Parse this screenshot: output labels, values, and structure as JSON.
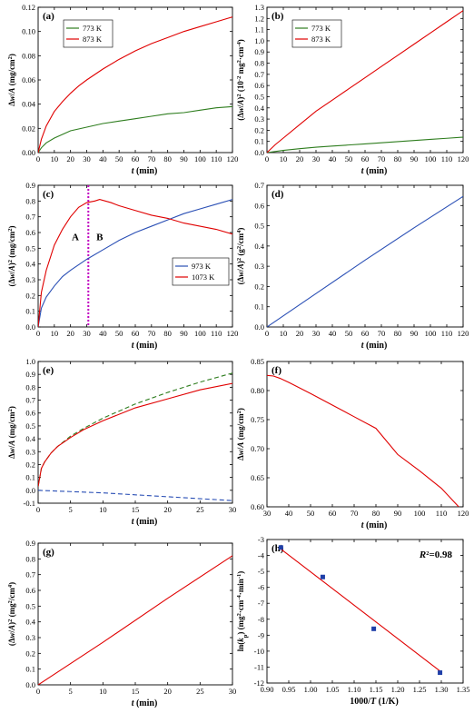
{
  "chart_data": [
    {
      "panel_label": "(a)",
      "type": "line",
      "xlabel_parts": [
        {
          "t": "t",
          "i": true
        },
        {
          "t": " (min)"
        }
      ],
      "ylabel_parts": [
        {
          "t": "Δ"
        },
        {
          "t": "w",
          "i": true
        },
        {
          "t": "/"
        },
        {
          "t": "A",
          "i": true
        },
        {
          "t": " (mg/cm"
        },
        {
          "t": "2",
          "sup": true
        },
        {
          "t": ")"
        }
      ],
      "xlim": [
        0,
        120
      ],
      "ylim": [
        0,
        0.12
      ],
      "xticks": [
        "0",
        "10",
        "20",
        "30",
        "40",
        "50",
        "60",
        "70",
        "80",
        "90",
        "100",
        "110",
        "120"
      ],
      "yticks": [
        "0.00",
        "0.02",
        "0.04",
        "0.06",
        "0.08",
        "0.10",
        "0.12"
      ],
      "legend": {
        "position": "top-left",
        "entries": [
          "773 K",
          "873 K"
        ]
      },
      "series": [
        {
          "name": "773 K",
          "color": "#2e7d1e",
          "dash": "",
          "x": [
            0,
            2,
            5,
            10,
            15,
            20,
            30,
            40,
            50,
            60,
            70,
            80,
            90,
            100,
            110,
            120
          ],
          "y": [
            0,
            0.004,
            0.008,
            0.012,
            0.015,
            0.018,
            0.021,
            0.024,
            0.026,
            0.028,
            0.03,
            0.032,
            0.033,
            0.035,
            0.037,
            0.038
          ]
        },
        {
          "name": "873 K",
          "color": "#e00000",
          "dash": "",
          "x": [
            0,
            2,
            5,
            10,
            15,
            20,
            25,
            30,
            40,
            50,
            60,
            70,
            80,
            90,
            100,
            110,
            120
          ],
          "y": [
            0,
            0.011,
            0.022,
            0.034,
            0.042,
            0.049,
            0.055,
            0.06,
            0.069,
            0.077,
            0.084,
            0.09,
            0.095,
            0.1,
            0.104,
            0.108,
            0.112
          ]
        }
      ]
    },
    {
      "panel_label": "(b)",
      "type": "line",
      "xlabel_parts": [
        {
          "t": "t",
          "i": true
        },
        {
          "t": " (min)"
        }
      ],
      "ylabel_parts": [
        {
          "t": "(Δ"
        },
        {
          "t": "w",
          "i": true
        },
        {
          "t": "/"
        },
        {
          "t": "A",
          "i": true
        },
        {
          "t": ")"
        },
        {
          "t": "2",
          "sup": true
        },
        {
          "t": " (10"
        },
        {
          "t": "-2",
          "sup": true
        },
        {
          "t": " mg"
        },
        {
          "t": "2",
          "sup": true
        },
        {
          "t": "·cm"
        },
        {
          "t": "-4",
          "sup": true
        },
        {
          "t": ")"
        }
      ],
      "xlim": [
        0,
        120
      ],
      "ylim": [
        0,
        1.3
      ],
      "xticks": [
        "0",
        "10",
        "20",
        "30",
        "40",
        "50",
        "60",
        "70",
        "80",
        "90",
        "100",
        "110",
        "120"
      ],
      "yticks": [
        "0.0",
        "0.1",
        "0.2",
        "0.3",
        "0.4",
        "0.5",
        "0.6",
        "0.7",
        "0.8",
        "0.9",
        "1.0",
        "1.1",
        "1.2",
        "1.3"
      ],
      "legend": {
        "position": "top-left",
        "entries": [
          "773 K",
          "873 K"
        ]
      },
      "series": [
        {
          "name": "773 K",
          "color": "#2e7d1e",
          "dash": "",
          "x": [
            0,
            10,
            20,
            30,
            40,
            50,
            60,
            70,
            80,
            90,
            100,
            110,
            120
          ],
          "y": [
            0,
            0.02,
            0.035,
            0.048,
            0.058,
            0.068,
            0.078,
            0.088,
            0.098,
            0.108,
            0.118,
            0.128,
            0.138
          ]
        },
        {
          "name": "873 K",
          "color": "#e00000",
          "dash": "",
          "x": [
            0,
            5,
            10,
            20,
            30,
            40,
            50,
            60,
            70,
            80,
            90,
            100,
            110,
            120
          ],
          "y": [
            0,
            0.07,
            0.13,
            0.25,
            0.37,
            0.47,
            0.57,
            0.67,
            0.77,
            0.87,
            0.97,
            1.07,
            1.17,
            1.27
          ]
        }
      ]
    },
    {
      "panel_label": "(c)",
      "type": "line",
      "xlabel_parts": [
        {
          "t": "t",
          "i": true
        },
        {
          "t": " (min)"
        }
      ],
      "ylabel_parts": [
        {
          "t": "(Δ"
        },
        {
          "t": "w",
          "i": true
        },
        {
          "t": "/"
        },
        {
          "t": "A",
          "i": true
        },
        {
          "t": ")"
        },
        {
          "t": "2",
          "sup": true
        },
        {
          "t": " (mg/cm"
        },
        {
          "t": "2",
          "sup": true
        },
        {
          "t": ")"
        }
      ],
      "xlim": [
        0,
        120
      ],
      "ylim": [
        0,
        0.9
      ],
      "xticks": [
        "0",
        "10",
        "20",
        "30",
        "40",
        "50",
        "60",
        "70",
        "80",
        "90",
        "100",
        "110",
        "120"
      ],
      "yticks": [
        "0.0",
        "0.1",
        "0.2",
        "0.3",
        "0.4",
        "0.5",
        "0.6",
        "0.7",
        "0.8",
        "0.9"
      ],
      "legend": {
        "position": "middle-right",
        "entries": [
          "973 K",
          "1073 K"
        ]
      },
      "vline": {
        "x": 31,
        "color": "#c000c0"
      },
      "annotations": [
        {
          "text": "A",
          "x": 23,
          "y": 0.55
        },
        {
          "text": "B",
          "x": 38,
          "y": 0.55
        }
      ],
      "series": [
        {
          "name": "973 K",
          "color": "#2a4fb5",
          "dash": "",
          "x": [
            0,
            2,
            5,
            10,
            15,
            20,
            30,
            40,
            50,
            60,
            70,
            80,
            90,
            100,
            110,
            120
          ],
          "y": [
            0,
            0.12,
            0.19,
            0.26,
            0.32,
            0.36,
            0.43,
            0.49,
            0.55,
            0.6,
            0.64,
            0.68,
            0.72,
            0.75,
            0.78,
            0.81
          ]
        },
        {
          "name": "1073 K",
          "color": "#e00000",
          "dash": "",
          "x": [
            0,
            2,
            5,
            10,
            15,
            20,
            25,
            30,
            35,
            38,
            45,
            50,
            60,
            70,
            80,
            90,
            100,
            110,
            120
          ],
          "y": [
            0,
            0.22,
            0.36,
            0.52,
            0.62,
            0.7,
            0.76,
            0.79,
            0.8,
            0.81,
            0.79,
            0.77,
            0.74,
            0.71,
            0.69,
            0.66,
            0.64,
            0.62,
            0.59
          ]
        }
      ]
    },
    {
      "panel_label": "(d)",
      "type": "line",
      "xlabel_parts": [
        {
          "t": "t",
          "i": true
        },
        {
          "t": " (min)"
        }
      ],
      "ylabel_parts": [
        {
          "t": "(Δ"
        },
        {
          "t": "w",
          "i": true
        },
        {
          "t": "/"
        },
        {
          "t": "A",
          "i": true
        },
        {
          "t": ")"
        },
        {
          "t": "2",
          "sup": true
        },
        {
          "t": " (g"
        },
        {
          "t": "2",
          "sup": true
        },
        {
          "t": "/cm"
        },
        {
          "t": "4",
          "sup": true
        },
        {
          "t": ")"
        }
      ],
      "xlim": [
        0,
        120
      ],
      "ylim": [
        0,
        0.7
      ],
      "xticks": [
        "0",
        "10",
        "20",
        "30",
        "40",
        "50",
        "60",
        "70",
        "80",
        "90",
        "100",
        "110",
        "120"
      ],
      "yticks": [
        "0.0",
        "0.1",
        "0.2",
        "0.3",
        "0.4",
        "0.5",
        "0.6",
        "0.7"
      ],
      "series": [
        {
          "color": "#2a4fb5",
          "dash": "",
          "x": [
            0,
            30,
            60,
            90,
            120
          ],
          "y": [
            0,
            0.165,
            0.33,
            0.49,
            0.645
          ]
        }
      ]
    },
    {
      "panel_label": "(e)",
      "type": "line",
      "xlabel_parts": [
        {
          "t": "t",
          "i": true
        },
        {
          "t": " (min)"
        }
      ],
      "ylabel_parts": [
        {
          "t": "Δ"
        },
        {
          "t": "w",
          "i": true
        },
        {
          "t": "/"
        },
        {
          "t": "A",
          "i": true
        },
        {
          "t": "  (mg/cm"
        },
        {
          "t": "2",
          "sup": true
        },
        {
          "t": ")"
        }
      ],
      "xlim": [
        0,
        30
      ],
      "ylim": [
        -0.1,
        1.0
      ],
      "xticks": [
        "0",
        "5",
        "10",
        "15",
        "20",
        "25",
        "30"
      ],
      "yticks": [
        "-0.1",
        "0.0",
        "0.1",
        "0.2",
        "0.3",
        "0.4",
        "0.5",
        "0.6",
        "0.7",
        "0.8",
        "0.9",
        "1.0"
      ],
      "series": [
        {
          "color": "#2e7d1e",
          "dash": "5,3",
          "x": [
            0,
            0.5,
            1,
            2,
            3,
            5,
            7,
            10,
            15,
            20,
            25,
            30
          ],
          "y": [
            0.03,
            0.17,
            0.22,
            0.29,
            0.34,
            0.42,
            0.48,
            0.56,
            0.67,
            0.76,
            0.84,
            0.91
          ]
        },
        {
          "color": "#e00000",
          "dash": "",
          "x": [
            0,
            0.5,
            1,
            2,
            3,
            5,
            7,
            10,
            15,
            20,
            25,
            30
          ],
          "y": [
            0.03,
            0.17,
            0.22,
            0.29,
            0.34,
            0.41,
            0.47,
            0.54,
            0.64,
            0.71,
            0.78,
            0.83
          ]
        },
        {
          "color": "#2a4fb5",
          "dash": "5,3",
          "x": [
            0,
            5,
            10,
            15,
            20,
            25,
            30
          ],
          "y": [
            0.0,
            -0.01,
            -0.02,
            -0.035,
            -0.05,
            -0.065,
            -0.08
          ]
        }
      ]
    },
    {
      "panel_label": "(f)",
      "type": "line",
      "xlabel_parts": [
        {
          "t": "t",
          "i": true
        },
        {
          "t": " (min)"
        }
      ],
      "ylabel_parts": [
        {
          "t": "Δ"
        },
        {
          "t": "w",
          "i": true
        },
        {
          "t": "/"
        },
        {
          "t": "A",
          "i": true
        },
        {
          "t": "  (mg/cm"
        },
        {
          "t": "2",
          "sup": true
        },
        {
          "t": ")"
        }
      ],
      "xlim": [
        30,
        120
      ],
      "ylim": [
        0.6,
        0.85
      ],
      "xticks": [
        "30",
        "40",
        "50",
        "60",
        "70",
        "80",
        "90",
        "100",
        "110",
        "120"
      ],
      "yticks": [
        "0.60",
        "0.65",
        "0.70",
        "0.75",
        "0.80",
        "0.85"
      ],
      "series": [
        {
          "color": "#e00000",
          "dash": "",
          "x": [
            30,
            33,
            36,
            40,
            50,
            60,
            70,
            80,
            90,
            100,
            110,
            118
          ],
          "y": [
            0.826,
            0.825,
            0.821,
            0.814,
            0.795,
            0.775,
            0.755,
            0.735,
            0.69,
            0.662,
            0.632,
            0.6
          ]
        }
      ]
    },
    {
      "panel_label": "(g)",
      "type": "line",
      "xlabel_parts": [
        {
          "t": "t",
          "i": true
        },
        {
          "t": " (min)"
        }
      ],
      "ylabel_parts": [
        {
          "t": "(Δ"
        },
        {
          "t": "w",
          "i": true
        },
        {
          "t": "/"
        },
        {
          "t": "A",
          "i": true
        },
        {
          "t": ")"
        },
        {
          "t": "2",
          "sup": true
        },
        {
          "t": " (mg"
        },
        {
          "t": "2",
          "sup": true
        },
        {
          "t": "/cm"
        },
        {
          "t": "4",
          "sup": true
        },
        {
          "t": ")"
        }
      ],
      "xlim": [
        0,
        30
      ],
      "ylim": [
        0,
        0.9
      ],
      "xticks": [
        "0",
        "5",
        "10",
        "15",
        "20",
        "25",
        "30"
      ],
      "yticks": [
        "0.0",
        "0.1",
        "0.2",
        "0.3",
        "0.4",
        "0.5",
        "0.6",
        "0.7",
        "0.8",
        "0.9"
      ],
      "series": [
        {
          "color": "#e00000",
          "dash": "",
          "x": [
            0,
            10,
            20,
            30
          ],
          "y": [
            0,
            0.27,
            0.55,
            0.82
          ]
        }
      ]
    },
    {
      "panel_label": "(h)",
      "type": "scatter",
      "xlabel_parts": [
        {
          "t": "1000/"
        },
        {
          "t": "T",
          "i": true
        },
        {
          "t": " (1/K)"
        }
      ],
      "ylabel_parts": [
        {
          "t": "ln("
        },
        {
          "t": "k",
          "i": true
        },
        {
          "t": "p",
          "sub": true
        },
        {
          "t": ") (mg"
        },
        {
          "t": "2",
          "sup": true
        },
        {
          "t": "·cm"
        },
        {
          "t": "-4",
          "sup": true
        },
        {
          "t": "·min"
        },
        {
          "t": "-1",
          "sup": true
        },
        {
          "t": ")"
        }
      ],
      "xlim": [
        0.9,
        1.35
      ],
      "ylim": [
        -12,
        -3
      ],
      "xticks": [
        "0.90",
        "0.95",
        "1.00",
        "1.05",
        "1.10",
        "1.15",
        "1.20",
        "1.25",
        "1.30",
        "1.35"
      ],
      "yticks": [
        "-3",
        "-4",
        "-5",
        "-6",
        "-7",
        "-8",
        "-9",
        "-10",
        "-11",
        "-12"
      ],
      "ytick_values": [
        -3,
        -4,
        -5,
        -6,
        -7,
        -8,
        -9,
        -10,
        -11,
        -12
      ],
      "annotation_parts": [
        {
          "t": "R",
          "i": true
        },
        {
          "t": "2",
          "sup": true
        },
        {
          "t": "=0.98"
        }
      ],
      "points": {
        "color": "#1f3fa8",
        "x": [
          0.932,
          1.028,
          1.145,
          1.297
        ],
        "y": [
          -3.5,
          -5.35,
          -8.6,
          -11.35
        ]
      },
      "fit": {
        "color": "#e00000",
        "x": [
          0.932,
          1.297
        ],
        "y": [
          -3.6,
          -11.25
        ]
      }
    }
  ]
}
